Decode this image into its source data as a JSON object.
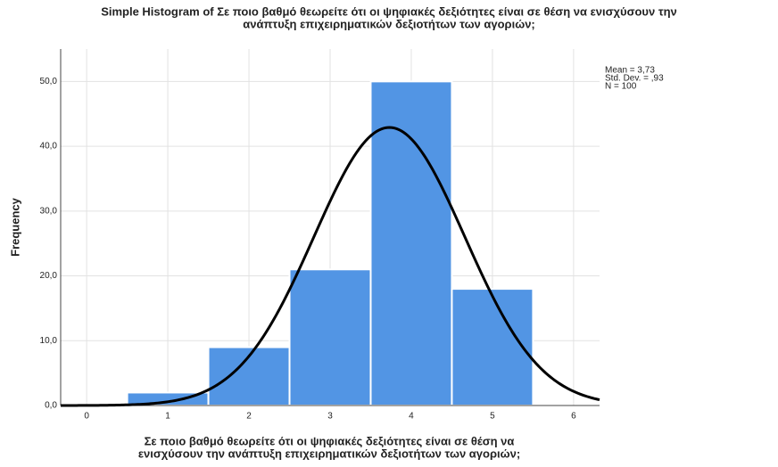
{
  "chart_data": {
    "type": "histogram",
    "title": [
      "Simple Histogram of Σε ποιο βαθμό θεωρείτε ότι οι ψηφιακές δεξιότητες  είναι σε θέση να ενισχύσουν την",
      "ανάπτυξη επιχειρηματικών δεξιοτήτων των αγοριών;"
    ],
    "x_label": [
      "Σε ποιο βαθμό θεωρείτε ότι οι ψηφιακές δεξιότητες  είναι σε θέση να",
      "ενισχύσουν την ανάπτυξη επιχειρηματικών δεξιοτήτων των αγοριών;"
    ],
    "y_label": "Frequency",
    "bins": [
      0.5,
      1.5,
      2.5,
      3.5,
      4.5,
      5.5
    ],
    "values": [
      2,
      9,
      21,
      50,
      18
    ],
    "color": "#5295e4",
    "xlim": [
      -0.32,
      6.32
    ],
    "xticks": [
      0,
      1,
      2,
      3,
      4,
      5,
      6
    ],
    "ylim": [
      0,
      55
    ],
    "yticks": [
      {
        "value": 0,
        "label": "0,0"
      },
      {
        "value": 10,
        "label": "10,0"
      },
      {
        "value": 20,
        "label": "20,0"
      },
      {
        "value": 30,
        "label": "30,0"
      },
      {
        "value": 40,
        "label": "40,0"
      },
      {
        "value": 50,
        "label": "50,0"
      }
    ],
    "grid": true,
    "normal_curve": {
      "mean": {
        "value": 3.73,
        "label": "Mean = 3,73"
      },
      "sd": {
        "value": 0.93,
        "label": "Std. Dev. = ,93"
      },
      "n": {
        "value": 100,
        "label": "N = 100"
      },
      "color": "#000000"
    }
  }
}
